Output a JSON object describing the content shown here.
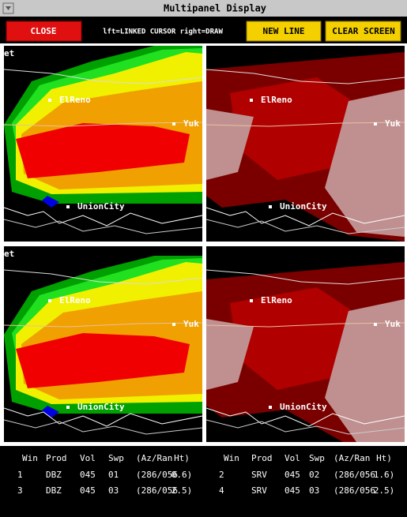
{
  "window": {
    "title": "Multipanel Display"
  },
  "toolbar": {
    "close": "CLOSE",
    "hint": "lft=LINKED CURSOR  right=DRAW",
    "new_line": "NEW LINE",
    "clear_screen": "CLEAR SCREEN"
  },
  "panels": [
    {
      "labels": [
        "et",
        "ElReno",
        "Yuk",
        "UnionCity"
      ]
    },
    {
      "labels": [
        "ElReno",
        "Yuk",
        "UnionCity"
      ]
    },
    {
      "labels": [
        "et",
        "ElReno",
        "Yuk",
        "UnionCity"
      ]
    },
    {
      "labels": [
        "ElReno",
        "Yuk",
        "UnionCity"
      ]
    }
  ],
  "info": {
    "headers": [
      "Win",
      "Prod",
      "Vol",
      "Swp",
      "(Az/Ran",
      "Ht)",
      "Win",
      "Prod",
      "Vol",
      "Swp",
      "(Az/Ran",
      "Ht)"
    ],
    "rows": [
      [
        "1",
        "DBZ",
        "045",
        "01",
        "(286/056",
        "0.6)",
        "2",
        "SRV",
        "045",
        "02",
        "(286/056",
        "1.6)"
      ],
      [
        "3",
        "DBZ",
        "045",
        "03",
        "(286/056",
        "2.5)",
        "4",
        "SRV",
        "045",
        "03",
        "(286/056",
        "2.5)"
      ]
    ]
  }
}
